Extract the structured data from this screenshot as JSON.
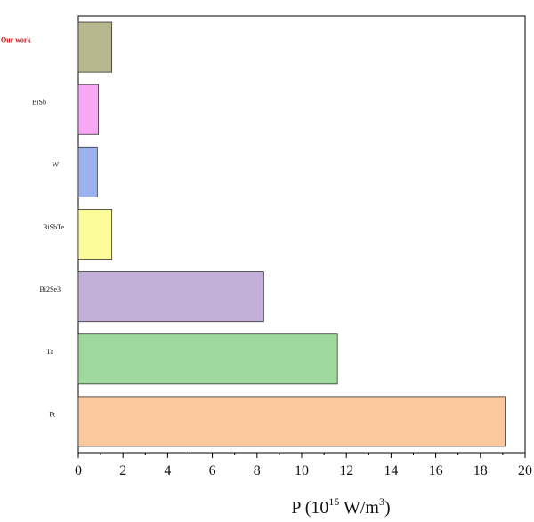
{
  "chart_data": {
    "type": "bar",
    "orientation": "horizontal",
    "title": "",
    "xlabel": "P (10",
    "xlabel_sup": "15",
    "xlabel_mid": " W/m",
    "xlabel_sup2": "3",
    "xlabel_end": ")",
    "ylabel": "",
    "xlim": [
      0,
      20
    ],
    "xticks": [
      0,
      2,
      4,
      6,
      8,
      10,
      12,
      14,
      16,
      18,
      20
    ],
    "grid": false,
    "legend": "none",
    "highlight_category": "Our work",
    "highlight_color": "#d0161b",
    "categories": [
      "Our work",
      "BiSb",
      "W",
      "BiSbTe",
      "Bi2Se3",
      "Ta",
      "Pt"
    ],
    "values": [
      1.5,
      0.9,
      0.85,
      1.5,
      8.3,
      11.6,
      19.1
    ],
    "colors": [
      "#b8b88f",
      "#f9a6f5",
      "#9cb1ef",
      "#fcfc9a",
      "#c2b0d9",
      "#9fd89c",
      "#fac89c"
    ]
  }
}
